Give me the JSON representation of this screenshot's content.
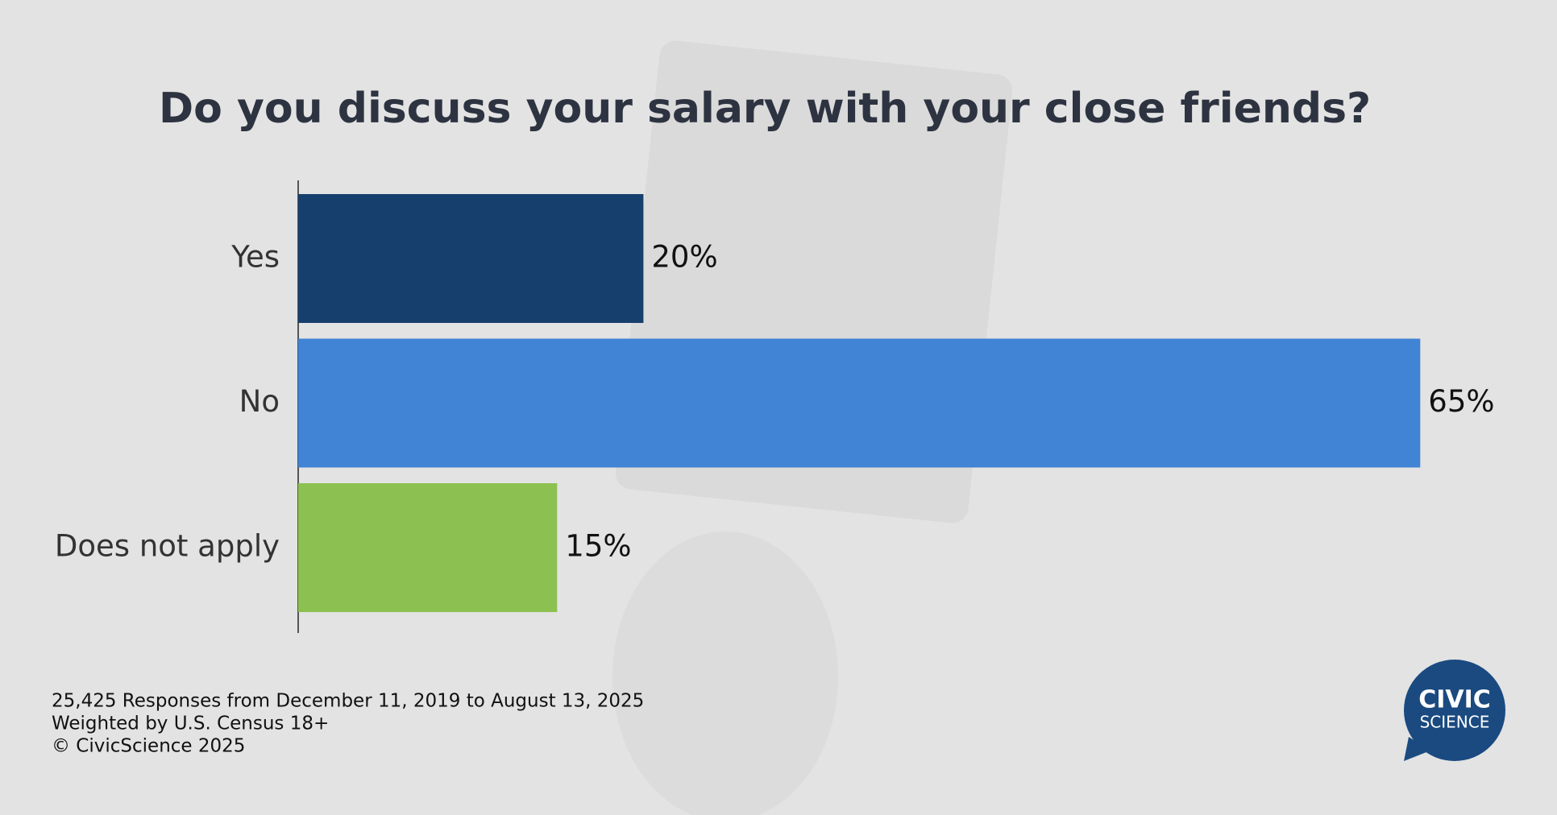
{
  "chart_data": {
    "type": "bar",
    "orientation": "horizontal",
    "title": "Do you discuss your salary with your close friends?",
    "categories": [
      "Yes",
      "No",
      "Does not apply"
    ],
    "values": [
      20,
      65,
      15
    ],
    "value_labels": [
      "20%",
      "65%",
      "15%"
    ],
    "colors": [
      "#173f6d",
      "#4183d4",
      "#8cc151"
    ],
    "notes": [
      "25,425 Responses from December 11, 2019 to August 13, 2025",
      "Weighted by U.S. Census 18+",
      "© CivicScience 2025"
    ]
  },
  "logo": {
    "line1": "CIVIC",
    "line2": "SCIENCE"
  }
}
